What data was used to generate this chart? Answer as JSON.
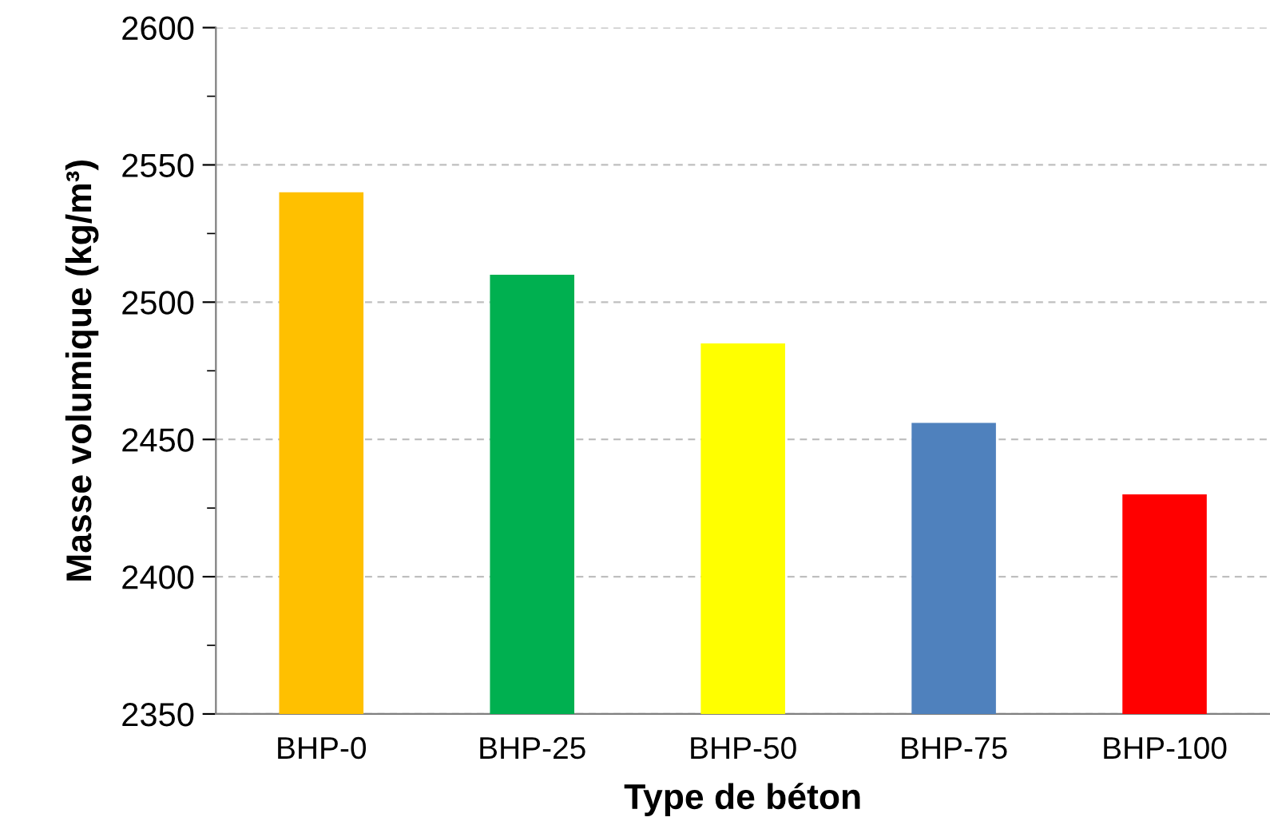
{
  "chart_data": {
    "type": "bar",
    "xlabel": "Type de béton",
    "ylabel": "Masse volumique (kg/m³)",
    "categories": [
      "BHP-0",
      "BHP-25",
      "BHP-50",
      "BHP-75",
      "BHP-100"
    ],
    "values": [
      2540,
      2510,
      2485,
      2456,
      2430
    ],
    "colors": [
      "#ffc000",
      "#00b050",
      "#ffff00",
      "#4f81bd",
      "#ff0000"
    ],
    "ylim": [
      2350,
      2600
    ],
    "yticks": [
      2350,
      {
        "value": 2375,
        "label": null
      },
      2400,
      {
        "value": 2425,
        "label": null
      },
      2450,
      {
        "value": 2475,
        "label": null
      },
      2500,
      {
        "value": 2525,
        "label": null
      },
      2550,
      {
        "value": 2575,
        "label": null
      },
      2600
    ],
    "grid": "y"
  }
}
